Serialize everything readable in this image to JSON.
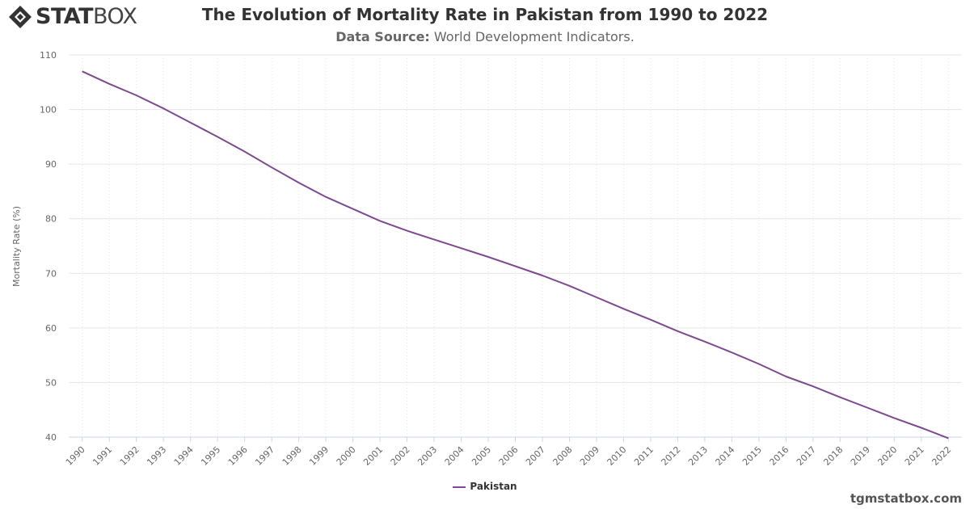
{
  "brand": {
    "name_bold": "STAT",
    "name_thin": "BOX"
  },
  "header": {
    "title": "The Evolution of Mortality Rate in Pakistan from 1990 to 2022",
    "source_label": "Data Source:",
    "source_value": "World Development Indicators."
  },
  "footer": {
    "site": "tgmstatbox.com"
  },
  "colors": {
    "series": "#7d4990",
    "grid": "#e6e6e6",
    "text": "#666666"
  },
  "chart_data": {
    "type": "line",
    "title": "The Evolution of Mortality Rate in Pakistan from 1990 to 2022",
    "subtitle": "Data Source: World Development Indicators.",
    "xlabel": "",
    "ylabel": "Mortality Rate (%)",
    "ylim": [
      40,
      110
    ],
    "yticks": [
      40,
      50,
      60,
      70,
      80,
      90,
      100,
      110
    ],
    "grid": true,
    "legend_position": "bottom-center",
    "categories": [
      "1990",
      "1991",
      "1992",
      "1993",
      "1994",
      "1995",
      "1996",
      "1997",
      "1998",
      "1999",
      "2000",
      "2001",
      "2002",
      "2003",
      "2004",
      "2005",
      "2006",
      "2007",
      "2008",
      "2009",
      "2010",
      "2011",
      "2012",
      "2013",
      "2014",
      "2015",
      "2016",
      "2017",
      "2018",
      "2019",
      "2020",
      "2021",
      "2022"
    ],
    "series": [
      {
        "name": "Pakistan",
        "values": [
          107.0,
          104.7,
          102.6,
          100.2,
          97.6,
          95.0,
          92.3,
          89.4,
          86.6,
          84.0,
          81.8,
          79.6,
          77.8,
          76.2,
          74.6,
          73.0,
          71.3,
          69.6,
          67.7,
          65.6,
          63.5,
          61.5,
          59.4,
          57.5,
          55.5,
          53.4,
          51.1,
          49.3,
          47.3,
          45.4,
          43.5,
          41.7,
          39.8
        ]
      }
    ]
  }
}
